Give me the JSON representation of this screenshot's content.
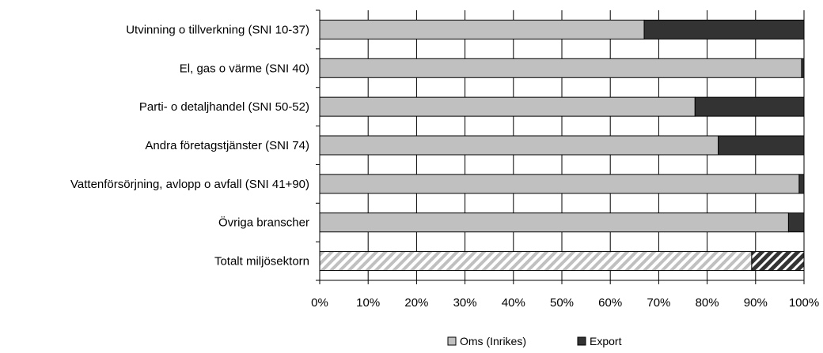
{
  "chart_data": {
    "type": "bar",
    "orientation": "horizontal",
    "stacked": "percent",
    "categories": [
      "Utvinning o tillverkning (SNI 10-37)",
      "El, gas o värme (SNI 40)",
      "Parti- o detaljhandel (SNI 50-52)",
      "Andra företagstjänster (SNI 74)",
      "Vattenförsörjning, avlopp o avfall (SNI 41+90)",
      "Övriga branscher",
      "Totalt miljösektorn"
    ],
    "series": [
      {
        "name": "Oms (Inrikes)",
        "values": [
          67,
          99.5,
          77.5,
          82.3,
          99,
          96.8,
          89.2
        ],
        "color": "#c0c0c0"
      },
      {
        "name": "Export",
        "values": [
          33,
          0.5,
          22.5,
          17.7,
          1,
          3.2,
          10.8
        ],
        "color": "#333333"
      }
    ],
    "highlighted_category": "Totalt miljösektorn",
    "highlight_style": "hatched",
    "xlim": [
      0,
      100
    ],
    "xticks": [
      "0%",
      "10%",
      "20%",
      "30%",
      "40%",
      "50%",
      "60%",
      "70%",
      "80%",
      "90%",
      "100%"
    ],
    "grid": true,
    "legend_position": "bottom"
  }
}
